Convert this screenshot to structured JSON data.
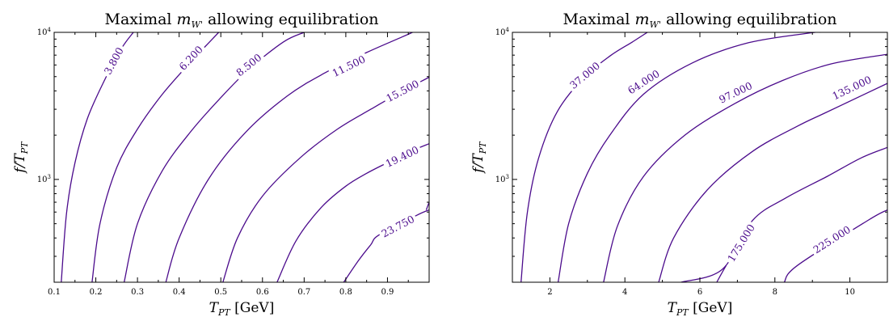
{
  "chart_data": [
    {
      "type": "contour",
      "title": "Maximal m_{W'} allowing equilibration",
      "title_parts": [
        "Maximal ",
        "m",
        "W'",
        " allowing equilibration"
      ],
      "xlabel": "T_{PT} [GeV]",
      "xlabel_parts": [
        "T",
        "PT",
        " [GeV]"
      ],
      "ylabel": "f/T_{PT}",
      "ylabel_parts": [
        "f/T",
        "PT"
      ],
      "xlim": [
        0.1,
        1.0
      ],
      "ylim": [
        200,
        10000
      ],
      "yscale": "log",
      "grid": false,
      "line_color": "#4b0b8c",
      "x_ticks": [
        0.1,
        0.2,
        0.3,
        0.4,
        0.5,
        0.6,
        0.7,
        0.8,
        0.9
      ],
      "x_tick_labels": [
        "0.1",
        "0.2",
        "0.3",
        "0.4",
        "0.5",
        "0.6",
        "0.7",
        "0.8",
        "0.9"
      ],
      "y_ticks": [
        {
          "value": 1000,
          "base": "10",
          "exp": "3"
        },
        {
          "value": 10000,
          "base": "10",
          "exp": "4"
        }
      ],
      "contours": [
        {
          "label": "3.800",
          "label_at": [
            0.243,
            6400
          ],
          "points": [
            [
              0.117,
              200
            ],
            [
              0.13,
              600
            ],
            [
              0.15,
              1300
            ],
            [
              0.18,
              2600
            ],
            [
              0.222,
              4800
            ],
            [
              0.262,
              7800
            ],
            [
              0.29,
              10000
            ]
          ]
        },
        {
          "label": "6.200",
          "label_at": [
            0.428,
            6700
          ],
          "points": [
            [
              0.191,
              200
            ],
            [
              0.21,
              500
            ],
            [
              0.25,
              1200
            ],
            [
              0.3,
              2200
            ],
            [
              0.36,
              3800
            ],
            [
              0.428,
              6300
            ],
            [
              0.495,
              10000
            ]
          ]
        },
        {
          "label": "8.500",
          "label_at": [
            0.567,
            6000
          ],
          "points": [
            [
              0.268,
              200
            ],
            [
              0.3,
              500
            ],
            [
              0.36,
              1150
            ],
            [
              0.43,
              2150
            ],
            [
              0.5,
              3600
            ],
            [
              0.567,
              5600
            ],
            [
              0.65,
              8600
            ],
            [
              0.7,
              10000
            ]
          ]
        },
        {
          "label": "11.500",
          "label_at": [
            0.807,
            5900
          ],
          "points": [
            [
              0.368,
              200
            ],
            [
              0.4,
              400
            ],
            [
              0.47,
              1000
            ],
            [
              0.56,
              2100
            ],
            [
              0.66,
              3700
            ],
            [
              0.75,
              5300
            ],
            [
              0.85,
              7300
            ],
            [
              0.935,
              9300
            ],
            [
              0.96,
              10000
            ]
          ]
        },
        {
          "label": "15.500",
          "label_at": [
            0.936,
            4000
          ],
          "points": [
            [
              0.505,
              200
            ],
            [
              0.54,
              400
            ],
            [
              0.6,
              770
            ],
            [
              0.69,
              1400
            ],
            [
              0.78,
              2200
            ],
            [
              0.86,
              3000
            ],
            [
              0.93,
              3900
            ],
            [
              1.0,
              4950
            ]
          ]
        },
        {
          "label": "19.400",
          "label_at": [
            0.935,
            1430
          ],
          "points": [
            [
              0.635,
              200
            ],
            [
              0.68,
              380
            ],
            [
              0.74,
              640
            ],
            [
              0.8,
              900
            ],
            [
              0.85,
              1100
            ],
            [
              0.9,
              1300
            ],
            [
              0.96,
              1570
            ],
            [
              1.0,
              1750
            ]
          ]
        },
        {
          "label": "23.750",
          "label_at": [
            0.925,
            480
          ],
          "points": [
            [
              0.795,
              200
            ],
            [
              0.83,
              280
            ],
            [
              0.86,
              360
            ],
            [
              0.88,
              420
            ],
            [
              0.97,
              570
            ],
            [
              1.0,
              620
            ]
          ]
        },
        {
          "label": "",
          "label_at": null,
          "points": [
            [
              0.993,
              620
            ],
            [
              1.0,
              700
            ]
          ]
        }
      ]
    },
    {
      "type": "contour",
      "title": "Maximal m_{W'} allowing equilibration",
      "title_parts": [
        "Maximal ",
        "m",
        "W'",
        " allowing equilibration"
      ],
      "xlabel": "T_{PT} [GeV]",
      "xlabel_parts": [
        "T",
        "PT",
        " [GeV]"
      ],
      "ylabel": "f/T_{PT}",
      "ylabel_parts": [
        "f/T",
        "PT"
      ],
      "xlim": [
        1.0,
        11.0
      ],
      "ylim": [
        200,
        10000
      ],
      "yscale": "log",
      "grid": false,
      "line_color": "#4b0b8c",
      "x_ticks": [
        2,
        4,
        6,
        8,
        10
      ],
      "x_tick_labels": [
        "2",
        "4",
        "6",
        "8",
        "10"
      ],
      "y_ticks": [
        {
          "value": 1000,
          "base": "10",
          "exp": "3"
        },
        {
          "value": 10000,
          "base": "10",
          "exp": "4"
        }
      ],
      "contours": [
        {
          "label": "37.000",
          "label_at": [
            2.93,
            5100
          ],
          "points": [
            [
              1.23,
              200
            ],
            [
              1.4,
              600
            ],
            [
              1.7,
              1400
            ],
            [
              2.2,
              2900
            ],
            [
              2.9,
              4900
            ],
            [
              3.6,
              6900
            ],
            [
              4.2,
              8600
            ],
            [
              4.6,
              10000
            ]
          ]
        },
        {
          "label": "64.000",
          "label_at": [
            4.5,
            4600
          ],
          "points": [
            [
              2.22,
              200
            ],
            [
              2.5,
              500
            ],
            [
              3.0,
              1100
            ],
            [
              3.6,
              2000
            ],
            [
              4.5,
              3800
            ],
            [
              5.8,
              6200
            ],
            [
              7.3,
              8500
            ],
            [
              9.0,
              9950
            ],
            [
              9.2,
              10000
            ]
          ]
        },
        {
          "label": "97.000",
          "label_at": [
            6.95,
            3900
          ],
          "points": [
            [
              3.43,
              200
            ],
            [
              3.8,
              480
            ],
            [
              4.5,
              1050
            ],
            [
              5.6,
              2000
            ],
            [
              6.95,
              3300
            ],
            [
              8.2,
              4700
            ],
            [
              9.5,
              6100
            ],
            [
              11.0,
              7100
            ]
          ]
        },
        {
          "label": "135.000",
          "label_at": [
            10.05,
            4200
          ],
          "points": [
            [
              4.9,
              200
            ],
            [
              5.3,
              400
            ],
            [
              6.2,
              850
            ],
            [
              7.4,
              1550
            ],
            [
              8.6,
              2300
            ],
            [
              9.3,
              2800
            ],
            [
              10.2,
              3600
            ],
            [
              11.0,
              4500
            ]
          ]
        },
        {
          "label": "175.000",
          "label_at": [
            7.1,
            370
          ],
          "points": [
            [
              5.5,
              200
            ],
            [
              6.6,
              245
            ],
            [
              7.4,
              525
            ],
            [
              8.3,
              750
            ],
            [
              9.4,
              1050
            ],
            [
              10.3,
              1400
            ],
            [
              11.0,
              1650
            ]
          ]
        },
        {
          "label": "225.000",
          "label_at": [
            9.52,
            390
          ],
          "points": [
            [
              8.25,
              200
            ],
            [
              8.6,
              260
            ],
            [
              10.5,
              530
            ],
            [
              11.0,
              620
            ]
          ]
        },
        {
          "label": "",
          "label_at": null,
          "points": [
            [
              6.45,
              200
            ],
            [
              6.7,
              260
            ]
          ]
        }
      ]
    }
  ]
}
